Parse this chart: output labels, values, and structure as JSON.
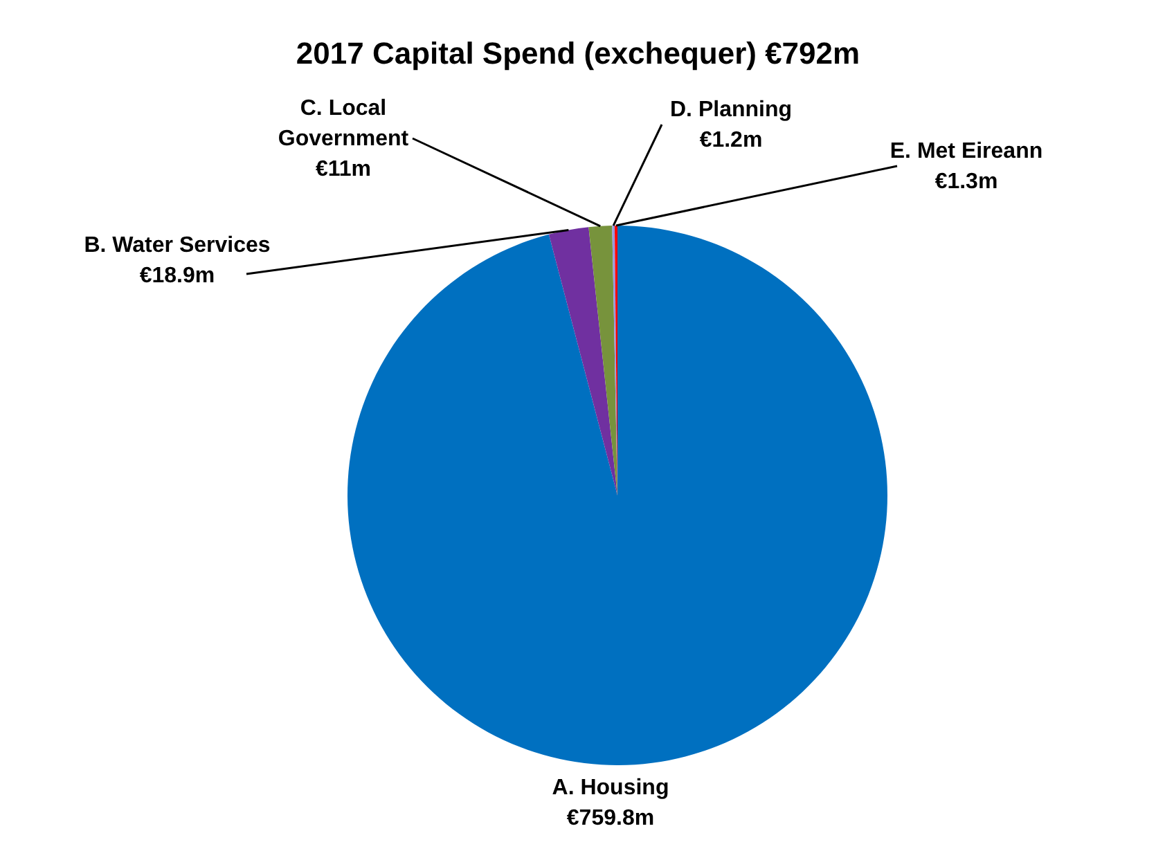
{
  "chart_data": {
    "type": "pie",
    "title": "2017 Capital Spend (exchequer) €792m",
    "categories": [
      "A. Housing",
      "B. Water Services",
      "C. Local Government",
      "D. Planning",
      "E. Met Eireann"
    ],
    "values": [
      759.8,
      18.9,
      11,
      1.2,
      1.3
    ],
    "value_labels": [
      "€759.8m",
      "€18.9m",
      "€11m",
      "€1.2m",
      "€1.3m"
    ],
    "colors": [
      "#0070c0",
      "#7030a0",
      "#77933c",
      "#9999dd",
      "#ff0000"
    ]
  }
}
